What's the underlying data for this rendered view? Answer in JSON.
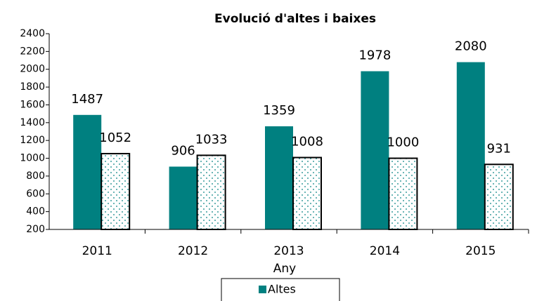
{
  "chart_data": {
    "type": "bar",
    "title": "Evolució d'altes i baixes",
    "x_label": "Any",
    "categories": [
      "2011",
      "2012",
      "2013",
      "2014",
      "2015"
    ],
    "series": [
      {
        "name": "Altes",
        "color": "#008080",
        "values": [
          1487,
          906,
          1359,
          1978,
          2080
        ]
      },
      {
        "color": "#008080",
        "pattern": true,
        "values": [
          1052,
          1033,
          1008,
          1000,
          931
        ]
      }
    ],
    "ylim": [
      200,
      2400
    ],
    "yticks": [
      200,
      400,
      600,
      800,
      1000,
      1200,
      1400,
      1600,
      1800,
      2000,
      2200,
      2400
    ],
    "grid": false,
    "legend": "bottom"
  }
}
